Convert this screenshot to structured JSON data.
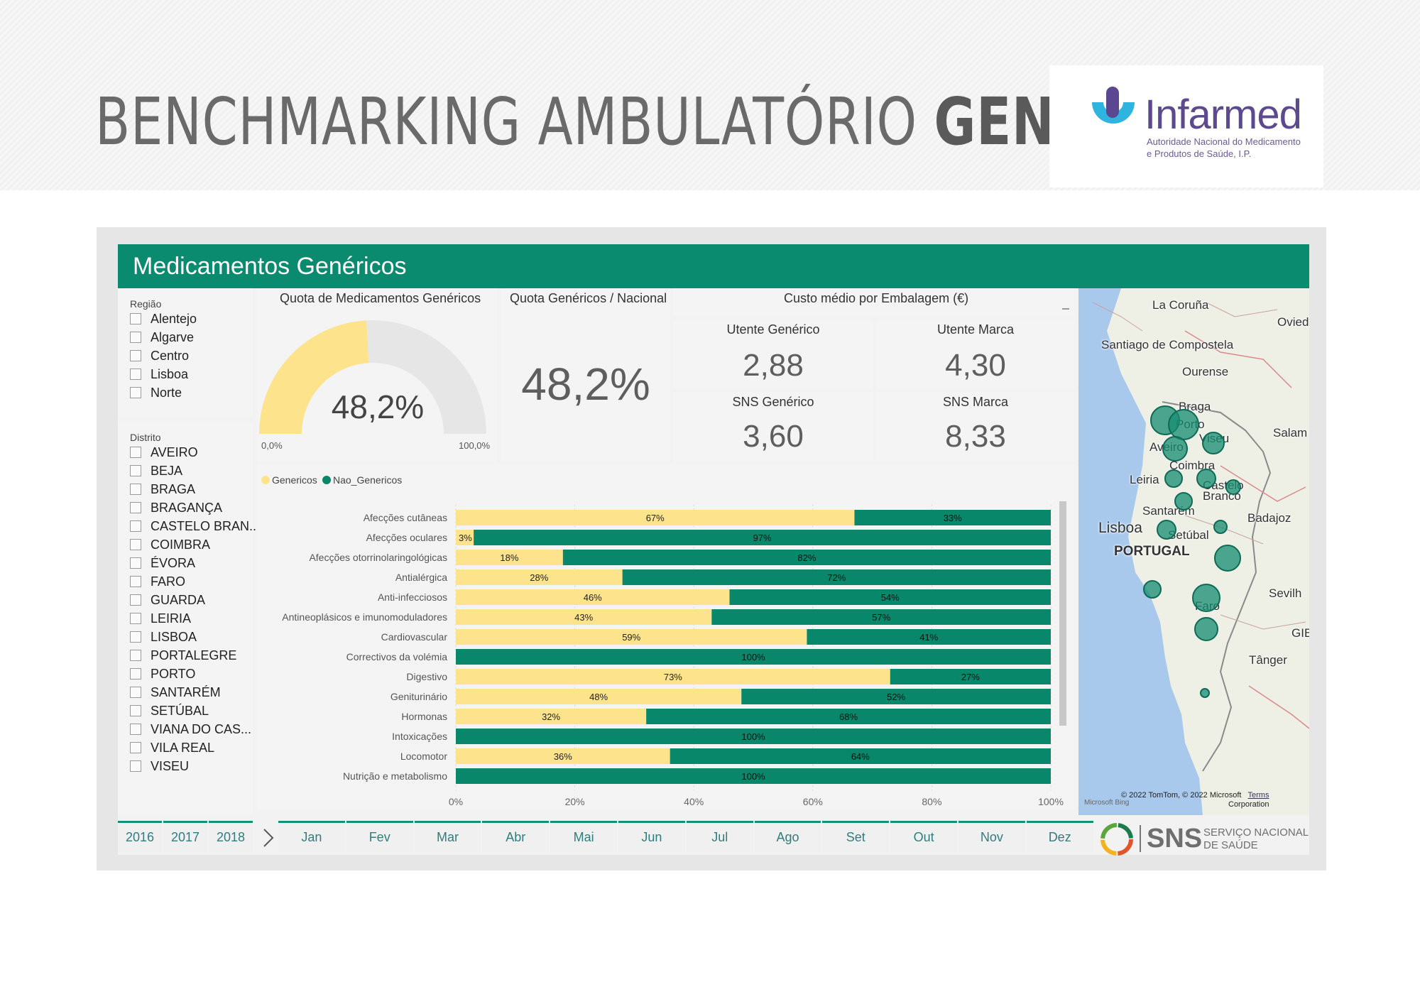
{
  "header": {
    "title_light": "BENCHMARKING AMBULATÓRIO",
    "title_bold": "GENÉRICOS",
    "logo_name": "Infarmed",
    "logo_sub1": "Autoridade Nacional do Medicamento",
    "logo_sub2": "e Produtos de Saúde, I.P."
  },
  "dashboard": {
    "title": "Medicamentos Genéricos"
  },
  "regiao": {
    "title": "Região",
    "items": [
      "Alentejo",
      "Algarve",
      "Centro",
      "Lisboa",
      "Norte"
    ]
  },
  "distrito": {
    "title": "Distrito",
    "items": [
      "AVEIRO",
      "BEJA",
      "BRAGA",
      "BRAGANÇA",
      "CASTELO BRAN...",
      "COIMBRA",
      "ÉVORA",
      "FARO",
      "GUARDA",
      "LEIRIA",
      "LISBOA",
      "PORTALEGRE",
      "PORTO",
      "SANTARÉM",
      "SETÚBAL",
      "VIANA DO CAS...",
      "VILA REAL",
      "VISEU"
    ]
  },
  "gauge": {
    "title": "Quota de Medicamentos Genéricos",
    "value": 48.2,
    "value_label": "48,2%",
    "min_label": "0,0%",
    "max_label": "100,0%"
  },
  "quota_nacional": {
    "title": "Quota Genéricos / Nacional",
    "value": "48,2%"
  },
  "custo": {
    "title": "Custo médio por Embalagem (€)",
    "cards": [
      {
        "label": "Utente Genérico",
        "value": "2,88"
      },
      {
        "label": "Utente Marca",
        "value": "4,30"
      },
      {
        "label": "SNS Genérico",
        "value": "3,60"
      },
      {
        "label": "SNS Marca",
        "value": "8,33"
      }
    ]
  },
  "chart_data": {
    "type": "bar",
    "orientation": "horizontal-stacked-100",
    "legend": [
      {
        "name": "Genericos",
        "color": "#fde48c"
      },
      {
        "name": "Nao_Genericos",
        "color": "#08876b"
      }
    ],
    "categories": [
      "Afecções cutâneas",
      "Afecções oculares",
      "Afecções otorrinolaringológicas",
      "Antialérgica",
      "Anti-infecciosos",
      "Antineoplásicos e imunomoduladores",
      "Cardiovascular",
      "Correctivos da volémia",
      "Digestivo",
      "Geniturinário",
      "Hormonas",
      "Intoxicações",
      "Locomotor",
      "Nutrição e metabolismo"
    ],
    "series": [
      {
        "name": "Genericos",
        "values": [
          67,
          3,
          18,
          28,
          46,
          43,
          59,
          0,
          73,
          48,
          32,
          0,
          36,
          0
        ]
      },
      {
        "name": "Nao_Genericos",
        "values": [
          33,
          97,
          82,
          72,
          54,
          57,
          41,
          100,
          27,
          52,
          68,
          100,
          64,
          100
        ]
      }
    ],
    "x_ticks": [
      "0%",
      "20%",
      "40%",
      "60%",
      "80%",
      "100%"
    ],
    "xlim": [
      0,
      100
    ]
  },
  "years": [
    "2016",
    "2017",
    "2018"
  ],
  "months": [
    "Jan",
    "Fev",
    "Mar",
    "Abr",
    "Mai",
    "Jun",
    "Jul",
    "Ago",
    "Set",
    "Out",
    "Nov",
    "Dez"
  ],
  "map": {
    "labels": [
      "La Coruña",
      "Ovied",
      "Santiago de Compostela",
      "Ourense",
      "Braga",
      "Porto",
      "Viseu",
      "Aveiro",
      "Salam",
      "Coimbra",
      "Leiria",
      "Castelo",
      "Branco",
      "Santarém",
      "Badajoz",
      "Lisboa",
      "Setúbal",
      "PORTUGAL",
      "Sevilh",
      "Faro",
      "GIB",
      "Tânger"
    ],
    "credit1": "© 2022 TomTom, © 2022 Microsoft",
    "credit2": "Corporation",
    "terms": "Terms",
    "bing": "Microsoft Bing"
  },
  "sns": {
    "acronym": "SNS",
    "line1": "SERVIÇO NACIONAL",
    "line2": "DE SAÚDE"
  },
  "colors": {
    "green": "#0a8a6e",
    "yellow": "#fde48c",
    "gauge_bg": "#e6e6e6"
  }
}
